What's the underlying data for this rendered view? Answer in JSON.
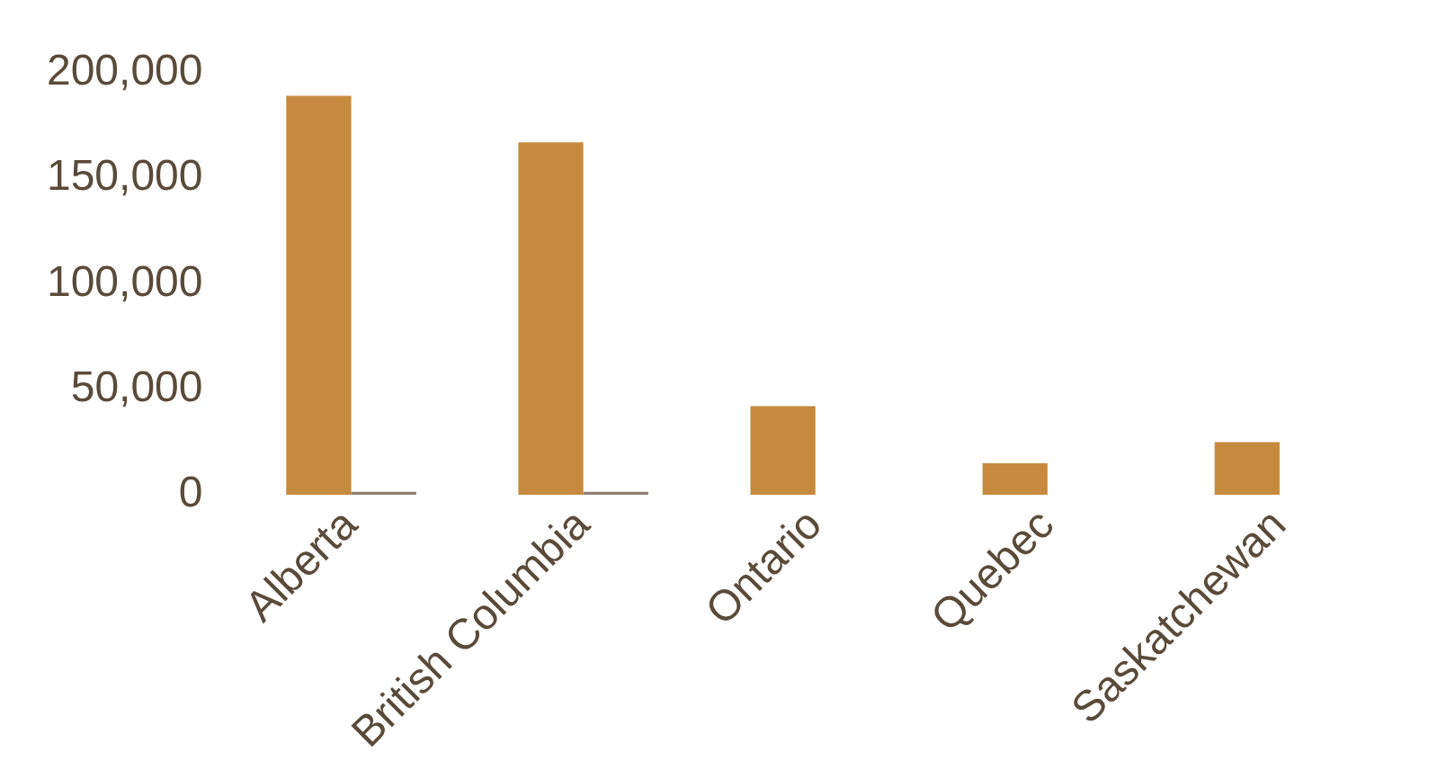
{
  "chart_data": {
    "type": "bar",
    "categories": [
      "Alberta",
      "British Columbia",
      "Ontario",
      "Quebec",
      "Saskatchewan"
    ],
    "series": [
      {
        "color": "#c68a3f",
        "values": [
          189000,
          167000,
          42000,
          15000,
          25000
        ]
      },
      {
        "color": "#8c8070",
        "values": [
          1500,
          1500,
          null,
          null,
          null
        ]
      }
    ],
    "ylim": [
      0,
      200000
    ],
    "yticks": [
      {
        "value": 0,
        "label": "0"
      },
      {
        "value": 50000,
        "label": "50,000"
      },
      {
        "value": 100000,
        "label": "100,000"
      },
      {
        "value": 150000,
        "label": "150,000"
      },
      {
        "value": 200000,
        "label": "200,000"
      }
    ],
    "grid": false,
    "legend": false
  }
}
